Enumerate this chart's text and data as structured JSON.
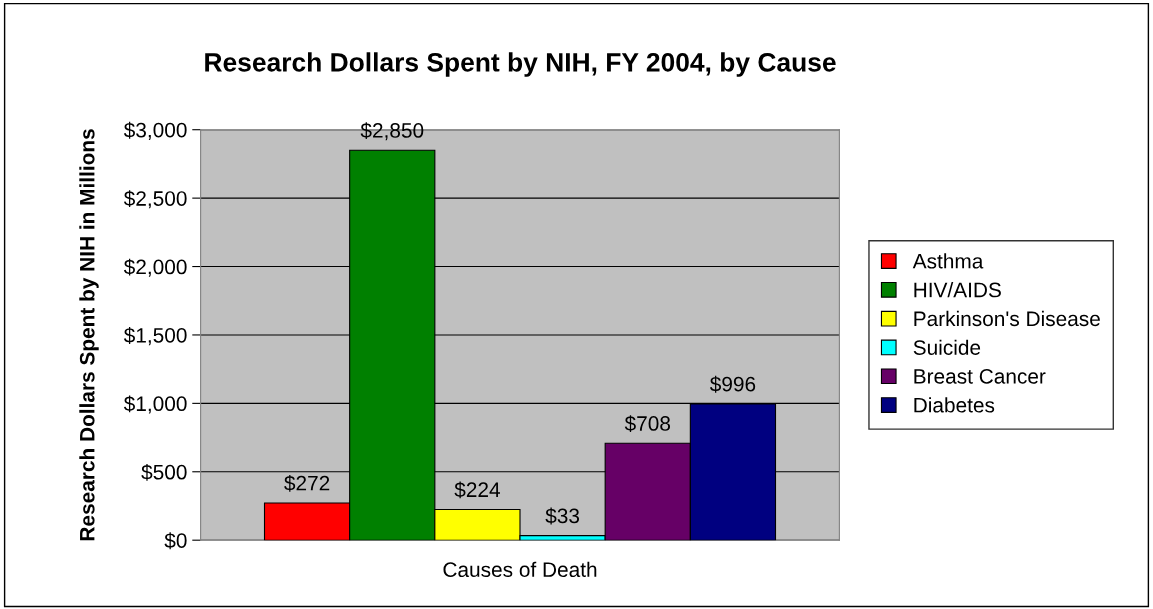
{
  "chart_data": {
    "type": "bar",
    "title": "Research Dollars Spent by NIH, FY 2004, by Cause",
    "xlabel": "Causes of Death",
    "ylabel": "Research Dollars Spent by NIH in Millions",
    "categories": [
      null
    ],
    "series": [
      {
        "name": "Asthma",
        "color": "#ff0000",
        "values": [
          272
        ],
        "value_labels": [
          "$272"
        ]
      },
      {
        "name": "HIV/AIDS",
        "color": "#008000",
        "values": [
          2850
        ],
        "value_labels": [
          "$2,850"
        ]
      },
      {
        "name": "Parkinson's Disease",
        "color": "#ffff00",
        "values": [
          224
        ],
        "value_labels": [
          "$224"
        ]
      },
      {
        "name": "Suicide",
        "color": "#00ffff",
        "values": [
          33
        ],
        "value_labels": [
          "$33"
        ]
      },
      {
        "name": "Breast Cancer",
        "color": "#660066",
        "values": [
          708
        ],
        "value_labels": [
          "$708"
        ]
      },
      {
        "name": "Diabetes",
        "color": "#000080",
        "values": [
          996
        ],
        "value_labels": [
          "$996"
        ]
      }
    ],
    "ylim": [
      0,
      3000
    ],
    "yticks": [
      {
        "value": 0,
        "label": "$0"
      },
      {
        "value": 500,
        "label": "$500"
      },
      {
        "value": 1000,
        "label": "$1,000"
      },
      {
        "value": 1500,
        "label": "$1,500"
      },
      {
        "value": 2000,
        "label": "$2,000"
      },
      {
        "value": 2500,
        "label": "$2,500"
      },
      {
        "value": 3000,
        "label": "$3,000"
      }
    ],
    "grid": "y",
    "legend": "right"
  }
}
